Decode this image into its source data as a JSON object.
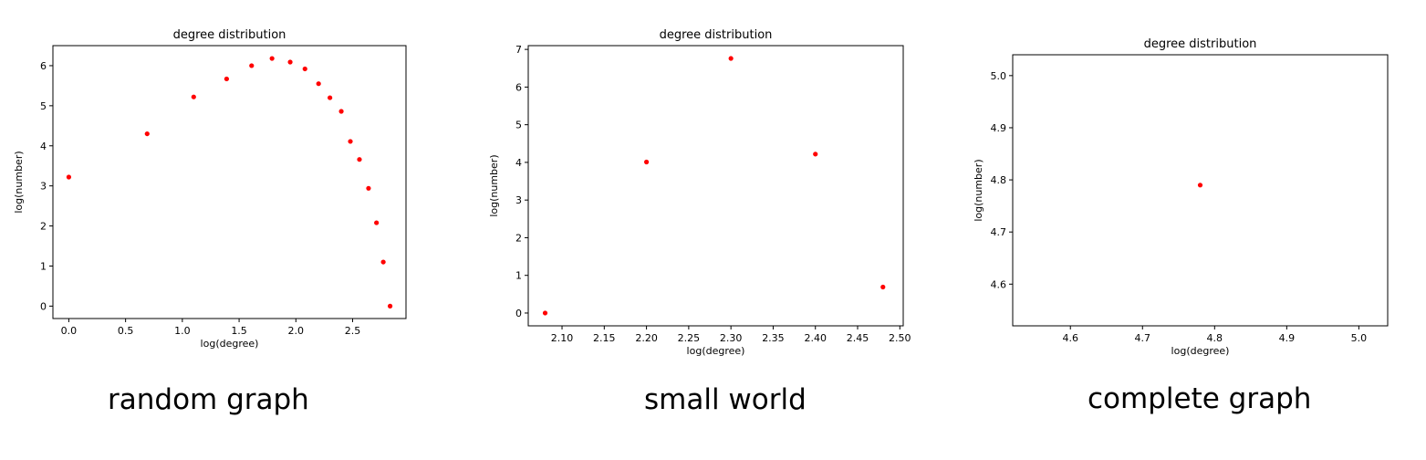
{
  "colors": {
    "marker": "#ff0000",
    "axis": "#000000",
    "background": "#ffffff"
  },
  "chart_data": [
    {
      "type": "scatter",
      "title": "degree distribution",
      "xlabel": "log(degree)",
      "ylabel": "log(number)",
      "xlim": [
        -0.14,
        2.97
      ],
      "ylim": [
        -0.31,
        6.5
      ],
      "xticks": [
        0.0,
        0.5,
        1.0,
        1.5,
        2.0,
        2.5
      ],
      "xtick_labels": [
        "0.0",
        "0.5",
        "1.0",
        "1.5",
        "2.0",
        "2.5"
      ],
      "yticks": [
        0,
        1,
        2,
        3,
        4,
        5,
        6
      ],
      "ytick_labels": [
        "0",
        "1",
        "2",
        "3",
        "4",
        "5",
        "6"
      ],
      "grid": false,
      "series": [
        {
          "x": [
            0.0,
            0.69,
            1.1,
            1.39,
            1.61,
            1.79,
            1.95,
            2.08,
            2.2,
            2.3,
            2.4,
            2.48,
            2.56,
            2.64,
            2.71,
            2.77,
            2.83
          ],
          "y": [
            3.22,
            4.3,
            5.22,
            5.67,
            6.0,
            6.18,
            6.09,
            5.92,
            5.55,
            5.2,
            4.86,
            4.11,
            3.66,
            2.94,
            2.08,
            1.1,
            0.0
          ]
        }
      ]
    },
    {
      "type": "scatter",
      "title": "degree distribution",
      "xlabel": "log(degree)",
      "ylabel": "log(number)",
      "xlim": [
        2.06,
        2.504
      ],
      "ylim": [
        -0.34,
        7.1
      ],
      "xticks": [
        2.1,
        2.15,
        2.2,
        2.25,
        2.3,
        2.35,
        2.4,
        2.45,
        2.5
      ],
      "xtick_labels": [
        "2.10",
        "2.15",
        "2.20",
        "2.25",
        "2.30",
        "2.35",
        "2.40",
        "2.45",
        "2.50"
      ],
      "yticks": [
        0,
        1,
        2,
        3,
        4,
        5,
        6,
        7
      ],
      "ytick_labels": [
        "0",
        "1",
        "2",
        "3",
        "4",
        "5",
        "6",
        "7"
      ],
      "grid": false,
      "series": [
        {
          "x": [
            2.08,
            2.2,
            2.3,
            2.4,
            2.48
          ],
          "y": [
            0.0,
            4.01,
            6.76,
            4.22,
            0.69
          ]
        }
      ]
    },
    {
      "type": "scatter",
      "title": "degree distribution",
      "xlabel": "log(degree)",
      "ylabel": "log(number)",
      "xlim": [
        4.52,
        5.04
      ],
      "ylim": [
        4.52,
        5.04
      ],
      "xticks": [
        4.6,
        4.7,
        4.8,
        4.9,
        5.0
      ],
      "xtick_labels": [
        "4.6",
        "4.7",
        "4.8",
        "4.9",
        "5.0"
      ],
      "yticks": [
        4.6,
        4.7,
        4.8,
        4.9,
        5.0
      ],
      "ytick_labels": [
        "4.6",
        "4.7",
        "4.8",
        "4.9",
        "5.0"
      ],
      "grid": false,
      "series": [
        {
          "x": [
            4.78
          ],
          "y": [
            4.79
          ]
        }
      ]
    }
  ],
  "captions": [
    "random graph",
    "small world",
    "complete graph"
  ]
}
